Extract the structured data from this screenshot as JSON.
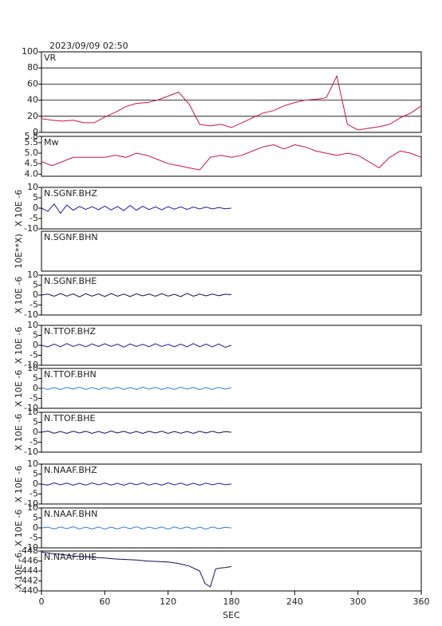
{
  "title": "2023/09/09 02:50",
  "chart_data": [
    {
      "type": "line",
      "label": "VR",
      "ylim": [
        0,
        100
      ],
      "yticks": [
        0,
        20,
        40,
        60,
        80,
        100
      ],
      "grid": true,
      "xlim": [
        0,
        360
      ],
      "color": "#cc1144",
      "x": [
        0,
        10,
        20,
        30,
        40,
        50,
        60,
        70,
        80,
        90,
        100,
        110,
        120,
        130,
        140,
        150,
        160,
        170,
        180,
        190,
        200,
        210,
        220,
        230,
        240,
        250,
        260,
        270,
        280,
        290,
        300,
        310,
        320,
        330,
        340,
        350,
        360
      ],
      "values": [
        17,
        15,
        14,
        15,
        12,
        12,
        19,
        25,
        32,
        36,
        37,
        40,
        45,
        50,
        35,
        10,
        8,
        10,
        6,
        12,
        18,
        24,
        27,
        33,
        37,
        40,
        41,
        43,
        70,
        10,
        3,
        5,
        7,
        10,
        18,
        24,
        33
      ]
    },
    {
      "type": "line",
      "label": "Mw",
      "ylim": [
        3.9,
        5.8
      ],
      "yticks": [
        {
          "value": 4,
          "label": "4.0"
        },
        4.5,
        {
          "value": 5,
          "label": "5.0"
        },
        5.5,
        5.8
      ],
      "xlim": [
        0,
        360
      ],
      "color": "#cc1144",
      "x": [
        0,
        10,
        20,
        30,
        40,
        50,
        60,
        70,
        80,
        90,
        100,
        110,
        120,
        130,
        140,
        150,
        160,
        170,
        180,
        190,
        200,
        210,
        220,
        230,
        240,
        250,
        260,
        270,
        280,
        290,
        300,
        310,
        320,
        330,
        340,
        350,
        360
      ],
      "values": [
        4.6,
        4.4,
        4.6,
        4.8,
        4.8,
        4.8,
        4.8,
        4.9,
        4.8,
        5.0,
        4.9,
        4.7,
        4.5,
        4.4,
        4.3,
        4.2,
        4.8,
        4.9,
        4.8,
        4.9,
        5.1,
        5.3,
        5.4,
        5.2,
        5.4,
        5.3,
        5.1,
        5.0,
        4.9,
        5.0,
        4.9,
        4.6,
        4.3,
        4.8,
        5.1,
        5.0,
        4.8
      ]
    },
    {
      "type": "line",
      "label": "N.SGNF.BHZ",
      "ylabel": "X 10E -6",
      "ylim": [
        -10,
        10
      ],
      "yticks": [
        -10,
        -5,
        0,
        5,
        10
      ],
      "xlim": [
        0,
        360
      ],
      "color": "#1a1aa8",
      "x": [
        0,
        6,
        12,
        18,
        24,
        30,
        36,
        42,
        48,
        54,
        60,
        66,
        72,
        78,
        84,
        90,
        96,
        102,
        108,
        114,
        120,
        126,
        132,
        138,
        144,
        150,
        156,
        162,
        168,
        174,
        180
      ],
      "values": [
        0,
        -1.5,
        2,
        -2.5,
        1.5,
        -1,
        0.8,
        -0.6,
        0.7,
        -0.8,
        1,
        -0.9,
        0.8,
        -1.2,
        1.3,
        -1,
        0.9,
        -0.7,
        0.6,
        -0.8,
        0.7,
        -0.5,
        0.6,
        -0.6,
        0.5,
        -0.4,
        0.5,
        -0.4,
        0.3,
        -0.3,
        0
      ]
    },
    {
      "type": "line",
      "label": "N.SGNF.BHN",
      "ylabel": "10E**X)",
      "xlim": [
        0,
        360
      ]
    },
    {
      "type": "line",
      "label": "N.SGNF.BHE",
      "ylabel": "X 10E -6",
      "ylim": [
        -10,
        10
      ],
      "yticks": [
        -10,
        -5,
        0,
        5,
        10
      ],
      "xlim": [
        0,
        360
      ],
      "color": "#101060",
      "x": [
        0,
        6,
        12,
        18,
        24,
        30,
        36,
        42,
        48,
        54,
        60,
        66,
        72,
        78,
        84,
        90,
        96,
        102,
        108,
        114,
        120,
        126,
        132,
        138,
        144,
        150,
        156,
        162,
        168,
        174,
        180
      ],
      "values": [
        0,
        0.5,
        -0.6,
        0.8,
        -0.5,
        0.6,
        -0.9,
        0.7,
        -0.5,
        0.6,
        -0.7,
        0.8,
        -0.6,
        0.5,
        -0.7,
        0.6,
        -0.4,
        0.5,
        -0.6,
        0.7,
        -0.5,
        0.4,
        -0.8,
        0.9,
        -0.6,
        0.5,
        -0.4,
        0.5,
        -0.3,
        0.4,
        0.2
      ]
    },
    {
      "type": "line",
      "label": "N.TTOF.BHZ",
      "ylabel": "X 10E -6",
      "ylim": [
        -10,
        10
      ],
      "yticks": [
        -10,
        -5,
        0,
        5,
        10
      ],
      "xlim": [
        0,
        360
      ],
      "color": "#1a1aa8",
      "x": [
        0,
        6,
        12,
        18,
        24,
        30,
        36,
        42,
        48,
        54,
        60,
        66,
        72,
        78,
        84,
        90,
        96,
        102,
        108,
        114,
        120,
        126,
        132,
        138,
        144,
        150,
        156,
        162,
        168,
        174,
        180
      ],
      "values": [
        0,
        -0.8,
        0.6,
        -0.7,
        0.9,
        -0.6,
        0.5,
        -0.8,
        0.7,
        -0.6,
        0.8,
        -0.5,
        0.6,
        -0.9,
        0.7,
        -0.6,
        0.5,
        -0.7,
        0.8,
        -0.6,
        0.5,
        -0.7,
        0.6,
        -0.8,
        0.9,
        -0.7,
        0.6,
        -0.8,
        0.7,
        -1,
        0
      ]
    },
    {
      "type": "line",
      "label": "N.TTOF.BHN",
      "ylabel": "X 10E -6",
      "ylim": [
        -10,
        10
      ],
      "yticks": [
        -10,
        -5,
        0,
        5,
        10
      ],
      "xlim": [
        0,
        360
      ],
      "color": "#2b7fd8",
      "x": [
        0,
        6,
        12,
        18,
        24,
        30,
        36,
        42,
        48,
        54,
        60,
        66,
        72,
        78,
        84,
        90,
        96,
        102,
        108,
        114,
        120,
        126,
        132,
        138,
        144,
        150,
        156,
        162,
        168,
        174,
        180
      ],
      "values": [
        0.3,
        -0.5,
        0.4,
        -0.6,
        0.5,
        -0.4,
        0.6,
        -0.5,
        0.4,
        -0.6,
        0.5,
        -0.4,
        0.6,
        -0.5,
        0.4,
        -0.5,
        0.6,
        -0.4,
        0.5,
        -0.6,
        0.4,
        -0.5,
        0.6,
        -0.4,
        0.5,
        -0.6,
        0.4,
        -0.5,
        0.5,
        -0.4,
        0.3
      ]
    },
    {
      "type": "line",
      "label": "N.TTOF.BHE",
      "ylabel": "X 10E -6",
      "ylim": [
        -10,
        10
      ],
      "yticks": [
        -10,
        -5,
        0,
        5,
        10
      ],
      "xlim": [
        0,
        360
      ],
      "color": "#101060",
      "x": [
        0,
        6,
        12,
        18,
        24,
        30,
        36,
        42,
        48,
        54,
        60,
        66,
        72,
        78,
        84,
        90,
        96,
        102,
        108,
        114,
        120,
        126,
        132,
        138,
        144,
        150,
        156,
        162,
        168,
        174,
        180
      ],
      "values": [
        0,
        0.6,
        -0.5,
        0.4,
        -0.6,
        0.5,
        -0.4,
        0.5,
        -0.6,
        0.4,
        -0.5,
        0.6,
        -0.4,
        0.5,
        -0.5,
        0.4,
        -0.6,
        0.5,
        -0.4,
        0.5,
        -0.6,
        0.4,
        -0.5,
        0.4,
        -0.6,
        0.5,
        -0.4,
        0.5,
        -0.4,
        0.3,
        0
      ]
    },
    {
      "type": "line",
      "label": "N.NAAF.BHZ",
      "ylabel": "X 10E -6",
      "ylim": [
        -10,
        10
      ],
      "yticks": [
        -10,
        -5,
        0,
        5,
        10
      ],
      "xlim": [
        0,
        360
      ],
      "color": "#1a1aa8",
      "x": [
        0,
        6,
        12,
        18,
        24,
        30,
        36,
        42,
        48,
        54,
        60,
        66,
        72,
        78,
        84,
        90,
        96,
        102,
        108,
        114,
        120,
        126,
        132,
        138,
        144,
        150,
        156,
        162,
        168,
        174,
        180
      ],
      "values": [
        0,
        -0.5,
        0.6,
        -0.4,
        0.5,
        -0.6,
        0.4,
        -0.5,
        0.6,
        -0.4,
        0.5,
        -0.5,
        0.4,
        -0.6,
        0.5,
        -0.4,
        0.6,
        -0.5,
        0.4,
        -0.5,
        0.6,
        -0.4,
        0.5,
        -0.6,
        0.4,
        -0.5,
        0.5,
        -0.4,
        0.4,
        -0.3,
        0
      ]
    },
    {
      "type": "line",
      "label": "N.NAAF.BHN",
      "ylabel": "X 10E -6",
      "ylim": [
        -10,
        10
      ],
      "yticks": [
        -10,
        -5,
        0,
        5,
        10
      ],
      "xlim": [
        0,
        360
      ],
      "color": "#2b7fd8",
      "x": [
        0,
        6,
        12,
        18,
        24,
        30,
        36,
        42,
        48,
        54,
        60,
        66,
        72,
        78,
        84,
        90,
        96,
        102,
        108,
        114,
        120,
        126,
        132,
        138,
        144,
        150,
        156,
        162,
        168,
        174,
        180
      ],
      "values": [
        0,
        0.4,
        -0.5,
        0.5,
        -0.4,
        0.6,
        -0.5,
        0.4,
        -0.5,
        0.5,
        -0.6,
        0.4,
        -0.5,
        0.5,
        -0.4,
        0.6,
        -0.5,
        0.4,
        -0.4,
        0.5,
        -0.6,
        0.5,
        -0.4,
        0.5,
        -0.5,
        0.4,
        -0.6,
        0.5,
        -0.4,
        0.3,
        0
      ]
    },
    {
      "type": "line",
      "label": "N.NAAF.BHE",
      "ylabel": "X 10E -6",
      "ylim": [
        -440,
        -448
      ],
      "yticks": [
        -440,
        -442,
        -444,
        -446,
        -448
      ],
      "xlim": [
        0,
        360
      ],
      "xticks": [
        0,
        60,
        120,
        180,
        240,
        300,
        360
      ],
      "xlabel": "SEC",
      "color": "#101060",
      "x": [
        0,
        10,
        20,
        30,
        40,
        50,
        60,
        70,
        80,
        90,
        100,
        110,
        120,
        130,
        140,
        150,
        155,
        160,
        165,
        170,
        175,
        180
      ],
      "values": [
        -447.8,
        -447.5,
        -447.3,
        -447,
        -446.9,
        -446.7,
        -446.6,
        -446.4,
        -446.3,
        -446.2,
        -446,
        -445.9,
        -445.8,
        -445.5,
        -445,
        -444,
        -441.5,
        -440.8,
        -444.4,
        -444.6,
        -444.7,
        -444.9
      ]
    }
  ]
}
